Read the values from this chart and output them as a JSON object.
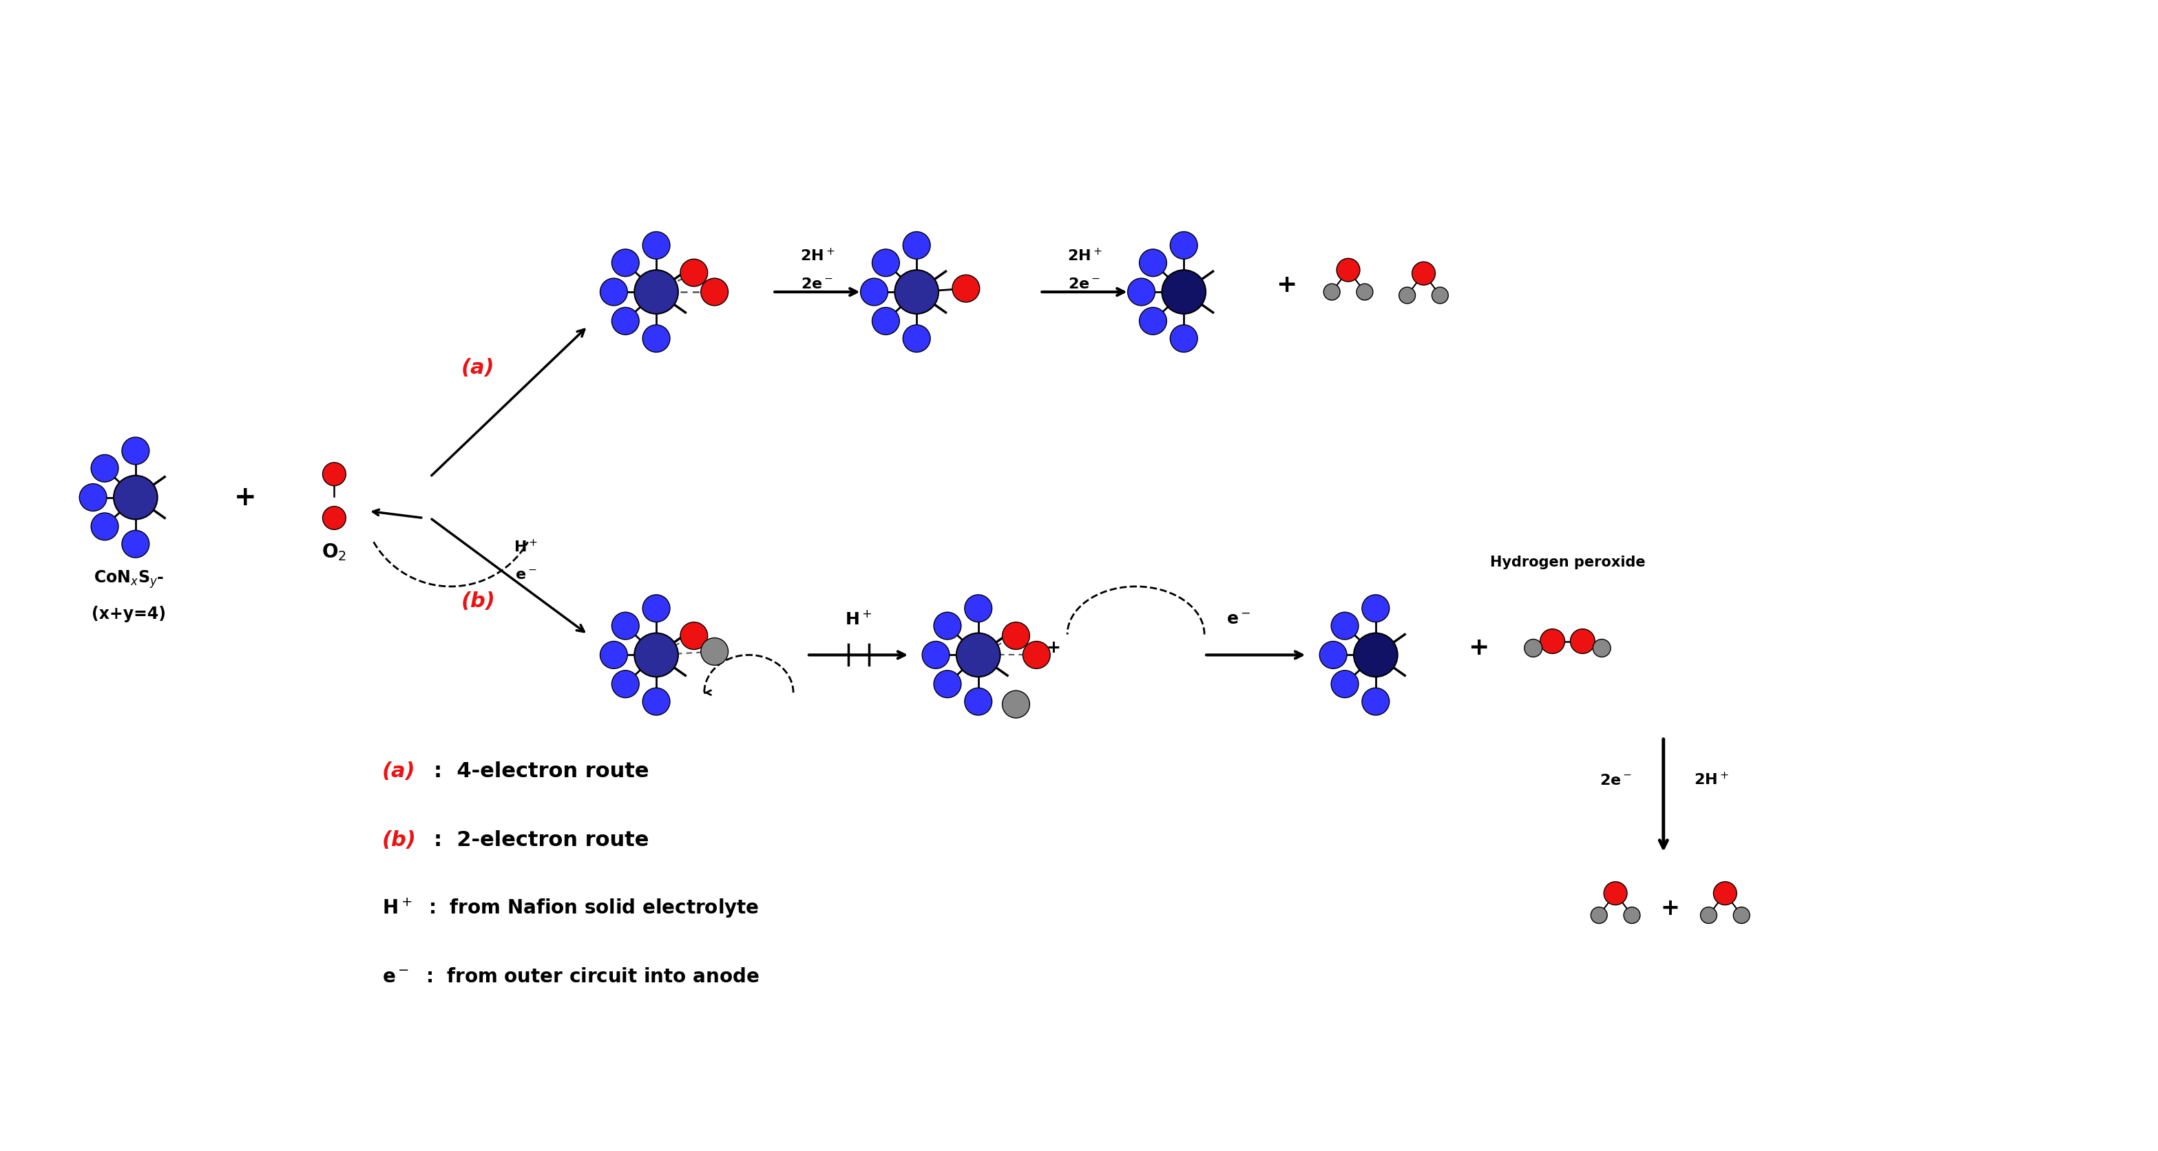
{
  "bg_color": "#ffffff",
  "blue_dark": "#2b2b9a",
  "blue_light": "#3333ff",
  "red": "#ee1111",
  "gray": "#888888",
  "gray_dark": "#555555",
  "black": "#000000",
  "label_a": "(a)",
  "label_b": "(b)",
  "text_co_line1": "CoN",
  "text_co_line2": "S",
  "text_co_line3": "-",
  "text_co_full": "CoN$_x$S$_y$-",
  "text_co_full2": "(x+y=4)",
  "text_o2": "O$_2$",
  "text_h2o2_label": "Hydrogen peroxide",
  "text_2h_1": "2H$^+$",
  "text_2e_1": "2e$^-$",
  "text_2h_2": "2H$^+$",
  "text_2e_2": "2e$^-$",
  "text_hplus": "H$^+$",
  "text_eminus": "e$^-$",
  "text_2eminus_side": "2e$^-$",
  "text_2hplus_side": "2H$^+$",
  "route_a_text": "(a)  :  4-electron route",
  "route_b_text": "(b)  :  2-electron route",
  "legend_h": "H$^+$  :  from Nafion solid electrolyte",
  "legend_e": "e$^-$  :  from outer circuit into anode"
}
